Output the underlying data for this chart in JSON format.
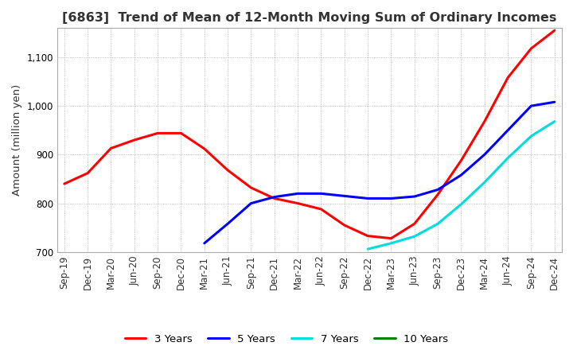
{
  "title": "[6863]  Trend of Mean of 12-Month Moving Sum of Ordinary Incomes",
  "ylabel": "Amount (million yen)",
  "ylim": [
    700,
    1160
  ],
  "yticks": [
    700,
    800,
    900,
    1000,
    1100
  ],
  "x_labels": [
    "Sep-19",
    "Dec-19",
    "Mar-20",
    "Jun-20",
    "Sep-20",
    "Dec-20",
    "Mar-21",
    "Jun-21",
    "Sep-21",
    "Dec-21",
    "Mar-22",
    "Jun-22",
    "Sep-22",
    "Dec-22",
    "Mar-23",
    "Jun-23",
    "Sep-23",
    "Dec-23",
    "Mar-24",
    "Jun-24",
    "Sep-24",
    "Dec-24"
  ],
  "series": {
    "3 Years": {
      "color": "#ff0000",
      "data": [
        840,
        862,
        913,
        930,
        944,
        944,
        912,
        868,
        832,
        810,
        800,
        788,
        755,
        733,
        728,
        758,
        818,
        888,
        968,
        1058,
        1118,
        1155
      ]
    },
    "5 Years": {
      "color": "#0000ff",
      "data": [
        null,
        null,
        null,
        null,
        null,
        null,
        718,
        758,
        800,
        813,
        820,
        820,
        815,
        810,
        810,
        814,
        828,
        858,
        900,
        950,
        1000,
        1008
      ]
    },
    "7 Years": {
      "color": "#00dddd",
      "data": [
        null,
        null,
        null,
        null,
        null,
        null,
        null,
        null,
        null,
        null,
        null,
        null,
        null,
        706,
        718,
        732,
        758,
        798,
        843,
        893,
        938,
        968
      ]
    },
    "10 Years": {
      "color": "#008000",
      "data": [
        null,
        null,
        null,
        null,
        null,
        null,
        null,
        null,
        null,
        null,
        null,
        null,
        null,
        null,
        null,
        null,
        null,
        null,
        null,
        null,
        null,
        null
      ]
    }
  },
  "background_color": "#ffffff",
  "grid_color": "#aaaaaa",
  "title_fontsize": 11.5,
  "label_fontsize": 9.5,
  "tick_fontsize": 8.5
}
